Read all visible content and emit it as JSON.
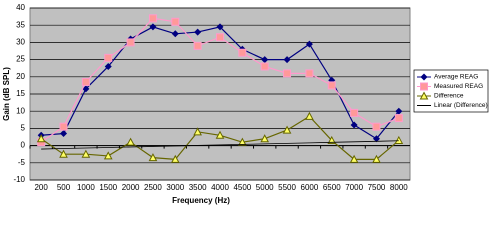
{
  "chart_data": {
    "type": "line",
    "x_label": "Frequency (Hz)",
    "y_label": "Gain (dB SPL)",
    "categories": [
      "200",
      "500",
      "1000",
      "1500",
      "2000",
      "2500",
      "3000",
      "3500",
      "4000",
      "4500",
      "5000",
      "5500",
      "6000",
      "6500",
      "7000",
      "7500",
      "8000"
    ],
    "ylim": [
      -10,
      40
    ],
    "yticks": [
      -10,
      -5,
      0,
      5,
      10,
      15,
      20,
      25,
      30,
      35,
      40
    ],
    "grid": true,
    "legend": "right",
    "series": [
      {
        "name": "Average REAG",
        "color": "#000080",
        "marker": "diamond",
        "values": [
          3,
          3.5,
          16.5,
          23,
          31,
          34.5,
          32.5,
          33,
          34.5,
          28,
          25,
          25,
          29.5,
          19,
          6,
          2,
          10
        ]
      },
      {
        "name": "Measured REAG",
        "color": "#ff99cc",
        "marker": "square",
        "values": [
          1,
          5.5,
          18.5,
          25.5,
          30,
          37,
          36,
          29,
          31.5,
          27,
          23,
          21,
          21,
          17.5,
          9.5,
          5.5,
          8
        ]
      },
      {
        "name": "Difference",
        "color": "#666600",
        "marker": "triangle",
        "values": [
          2,
          -2.5,
          -2.5,
          -3,
          1,
          -3.5,
          -4,
          4,
          3,
          1,
          2,
          4.5,
          8.5,
          1.5,
          -4,
          -4,
          1.5
        ]
      },
      {
        "name": "Linear (Difference)",
        "color": "#000000",
        "marker": "none",
        "values": [
          -1.0,
          -0.85,
          -0.7,
          -0.55,
          -0.4,
          -0.25,
          -0.1,
          0.05,
          0.2,
          0.35,
          0.5,
          0.65,
          0.8,
          0.95,
          1.1,
          1.25,
          1.4
        ]
      }
    ]
  }
}
